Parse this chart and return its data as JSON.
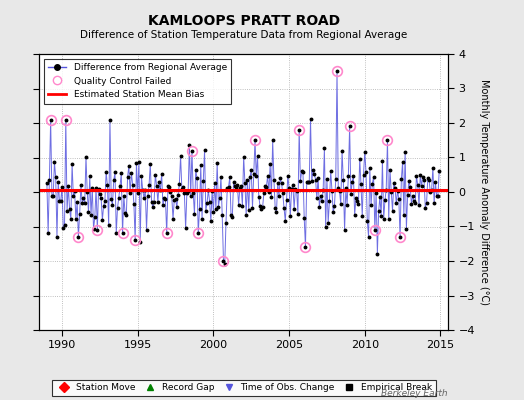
{
  "title": "KAMLOOPS PRATT ROAD",
  "subtitle": "Difference of Station Temperature Data from Regional Average",
  "ylabel_right": "Monthly Temperature Anomaly Difference (°C)",
  "xlim": [
    1988.5,
    2015.5
  ],
  "ylim": [
    -4,
    4
  ],
  "yticks": [
    -4,
    -3,
    -2,
    -1,
    0,
    1,
    2,
    3,
    4
  ],
  "xticks": [
    1990,
    1995,
    2000,
    2005,
    2010,
    2015
  ],
  "mean_bias": 0.05,
  "background_color": "#e8e8e8",
  "plot_bg_color": "#ffffff",
  "line_color": "#5555dd",
  "dot_color": "#000000",
  "bias_color": "#ff0000",
  "qc_color": "#ff88cc",
  "watermark": "Berkeley Earth",
  "seed": 42,
  "start_year": 1989,
  "end_year": 2014
}
